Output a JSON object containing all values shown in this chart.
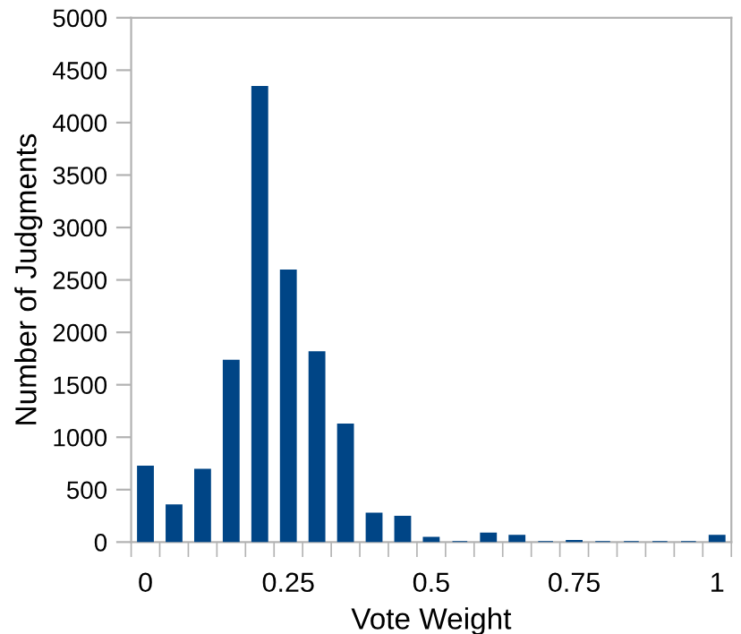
{
  "chart_data": {
    "type": "bar",
    "xlabel": "Vote Weight",
    "ylabel": "Number of Judgments",
    "x": [
      0,
      0.05,
      0.1,
      0.15,
      0.2,
      0.25,
      0.3,
      0.35,
      0.4,
      0.45,
      0.5,
      0.55,
      0.6,
      0.65,
      0.7,
      0.75,
      0.8,
      0.85,
      0.9,
      0.95,
      1
    ],
    "values": [
      720,
      350,
      690,
      1730,
      4340,
      2590,
      1810,
      1120,
      270,
      240,
      40,
      0,
      80,
      60,
      0,
      10,
      0,
      0,
      0,
      0,
      60
    ],
    "color": "#004586",
    "xlim": [
      -0.025,
      1.025
    ],
    "xticks": [
      0,
      0.25,
      0.5,
      0.75,
      1,
      {
        "value": -0.025,
        "label": null
      },
      {
        "value": 0.025,
        "label": null
      },
      {
        "value": 0.075,
        "label": null
      },
      {
        "value": 0.125,
        "label": null
      },
      {
        "value": 0.175,
        "label": null
      },
      {
        "value": 0.225,
        "label": null
      },
      {
        "value": 0.275,
        "label": null
      },
      {
        "value": 0.325,
        "label": null
      },
      {
        "value": 0.375,
        "label": null
      },
      {
        "value": 0.425,
        "label": null
      },
      {
        "value": 0.475,
        "label": null
      },
      {
        "value": 0.525,
        "label": null
      },
      {
        "value": 0.575,
        "label": null
      },
      {
        "value": 0.625,
        "label": null
      },
      {
        "value": 0.675,
        "label": null
      },
      {
        "value": 0.725,
        "label": null
      },
      {
        "value": 0.775,
        "label": null
      },
      {
        "value": 0.825,
        "label": null
      },
      {
        "value": 0.875,
        "label": null
      },
      {
        "value": 0.925,
        "label": null
      },
      {
        "value": 0.975,
        "label": null
      },
      {
        "value": 1.025,
        "label": null
      }
    ],
    "ylim": [
      0,
      5000
    ],
    "yticks": [
      0,
      500,
      1000,
      1500,
      2000,
      2500,
      3000,
      3500,
      4000,
      4500,
      5000
    ],
    "grid": false,
    "legend": false
  }
}
